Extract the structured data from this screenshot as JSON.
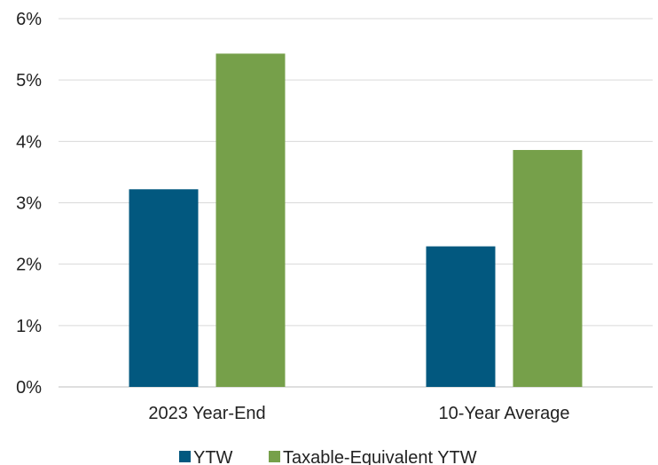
{
  "chart_data": {
    "type": "bar",
    "categories": [
      "2023 Year-End",
      "10-Year Average"
    ],
    "series": [
      {
        "name": "YTW",
        "values": [
          3.22,
          2.29
        ],
        "color": "#02587f"
      },
      {
        "name": "Taxable-Equivalent YTW",
        "values": [
          5.43,
          3.86
        ],
        "color": "#76a04a"
      }
    ],
    "yticks": [
      "0%",
      "1%",
      "2%",
      "3%",
      "4%",
      "5%",
      "6%"
    ],
    "ylim": [
      0,
      6
    ],
    "grid": true,
    "legend_position": "bottom"
  }
}
